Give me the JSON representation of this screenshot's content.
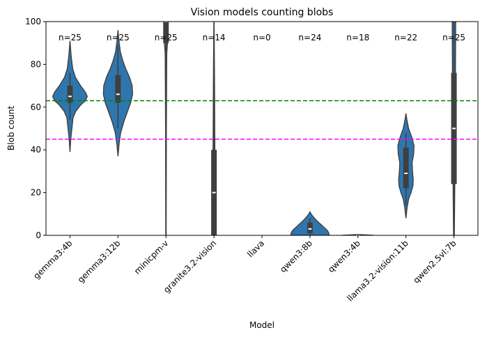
{
  "chart_data": {
    "type": "violin",
    "title": "Vision models counting blobs",
    "xlabel": "Model",
    "ylabel": "Blob count",
    "ylim": [
      0,
      100
    ],
    "yticks": [
      0,
      20,
      40,
      60,
      80,
      100
    ],
    "color": "#2f76ae",
    "reference_lines": [
      {
        "y": 63,
        "color": "#008000",
        "style": "dashed"
      },
      {
        "y": 45,
        "color": "#ff00ff",
        "style": "dashed"
      }
    ],
    "categories": [
      "gemma3:4b",
      "gemma3:12b",
      "minicpm-v",
      "granite3.2-vision",
      "llava",
      "qwen3:8b",
      "qwen3:4b",
      "llama3.2-vision:11b",
      "qwen2.5vl:7b"
    ],
    "series": [
      {
        "model": "gemma3:4b",
        "n_label": "n=25",
        "min": 39,
        "max": 91,
        "q1": 62,
        "median": 65,
        "q3": 70,
        "whisker_low": 54,
        "whisker_high": 76,
        "profile": [
          [
            39,
            0
          ],
          [
            45,
            0.04
          ],
          [
            50,
            0.1
          ],
          [
            55,
            0.16
          ],
          [
            58,
            0.3
          ],
          [
            61,
            0.56
          ],
          [
            63,
            0.8
          ],
          [
            65,
            0.9
          ],
          [
            67,
            0.8
          ],
          [
            70,
            0.55
          ],
          [
            74,
            0.28
          ],
          [
            78,
            0.14
          ],
          [
            84,
            0.06
          ],
          [
            91,
            0
          ]
        ]
      },
      {
        "model": "gemma3:12b",
        "n_label": "n=25",
        "min": 37,
        "max": 96,
        "q1": 62,
        "median": 66,
        "q3": 75,
        "whisker_low": 50,
        "whisker_high": 89,
        "profile": [
          [
            37,
            0
          ],
          [
            43,
            0.06
          ],
          [
            48,
            0.14
          ],
          [
            53,
            0.3
          ],
          [
            58,
            0.5
          ],
          [
            62,
            0.66
          ],
          [
            66,
            0.76
          ],
          [
            70,
            0.74
          ],
          [
            74,
            0.6
          ],
          [
            78,
            0.4
          ],
          [
            82,
            0.24
          ],
          [
            86,
            0.12
          ],
          [
            91,
            0.05
          ],
          [
            96,
            0
          ]
        ]
      },
      {
        "model": "minicpm-v",
        "n_label": "n=25",
        "min": 0,
        "max": 100,
        "q1": 90,
        "median": 100,
        "q3": 100,
        "whisker_low": 17,
        "whisker_high": 100,
        "profile": [
          [
            0,
            0.01
          ],
          [
            50,
            0.02
          ],
          [
            85,
            0.04
          ],
          [
            90,
            0.08
          ],
          [
            95,
            0.1
          ],
          [
            100,
            0.11
          ]
        ]
      },
      {
        "model": "granite3.2-vision",
        "n_label": "n=14",
        "min": 0,
        "max": 100,
        "q1": 0,
        "median": 20,
        "q3": 40,
        "whisker_low": 0,
        "whisker_high": 85,
        "profile": [
          [
            0,
            0.08
          ],
          [
            10,
            0.07
          ],
          [
            20,
            0.06
          ],
          [
            35,
            0.05
          ],
          [
            50,
            0.04
          ],
          [
            70,
            0.03
          ],
          [
            90,
            0.015
          ],
          [
            100,
            0.005
          ]
        ]
      },
      {
        "model": "llava",
        "n_label": "n=0"
      },
      {
        "model": "qwen3:8b",
        "n_label": "n=24",
        "min": 0,
        "max": 11,
        "q1": 1,
        "median": 3,
        "q3": 6,
        "whisker_low": 0,
        "whisker_high": 8,
        "profile": [
          [
            0,
            1
          ],
          [
            1,
            0.98
          ],
          [
            2,
            0.93
          ],
          [
            3,
            0.82
          ],
          [
            4,
            0.7
          ],
          [
            5,
            0.58
          ],
          [
            6,
            0.46
          ],
          [
            7,
            0.34
          ],
          [
            8,
            0.24
          ],
          [
            9,
            0.14
          ],
          [
            10,
            0.06
          ],
          [
            11,
            0
          ]
        ]
      },
      {
        "model": "qwen3:4b",
        "n_label": "n=18",
        "min": 0,
        "max": 0.4,
        "q1": 0,
        "median": 0,
        "q3": 0,
        "whisker_low": 0,
        "whisker_high": 0,
        "profile": [
          [
            0,
            0.83
          ],
          [
            0.4,
            0
          ]
        ]
      },
      {
        "model": "llama3.2-vision:11b",
        "n_label": "n=22",
        "min": 8,
        "max": 57,
        "q1": 22,
        "median": 29,
        "q3": 41,
        "whisker_low": 14,
        "whisker_high": 48,
        "profile": [
          [
            8,
            0
          ],
          [
            13,
            0.06
          ],
          [
            17,
            0.14
          ],
          [
            20,
            0.26
          ],
          [
            23,
            0.36
          ],
          [
            26,
            0.38
          ],
          [
            30,
            0.34
          ],
          [
            34,
            0.32
          ],
          [
            38,
            0.4
          ],
          [
            42,
            0.42
          ],
          [
            46,
            0.3
          ],
          [
            50,
            0.14
          ],
          [
            54,
            0.05
          ],
          [
            57,
            0
          ]
        ]
      },
      {
        "model": "qwen2.5vl:7b",
        "n_label": "n=25",
        "min": 0,
        "max": 100,
        "q1": 24,
        "median": 50,
        "q3": 76,
        "whisker_low": 0,
        "whisker_high": 100,
        "profile": [
          [
            0,
            0.02
          ],
          [
            20,
            0.04
          ],
          [
            40,
            0.06
          ],
          [
            60,
            0.07
          ],
          [
            80,
            0.08
          ],
          [
            100,
            0.09
          ]
        ]
      }
    ]
  }
}
